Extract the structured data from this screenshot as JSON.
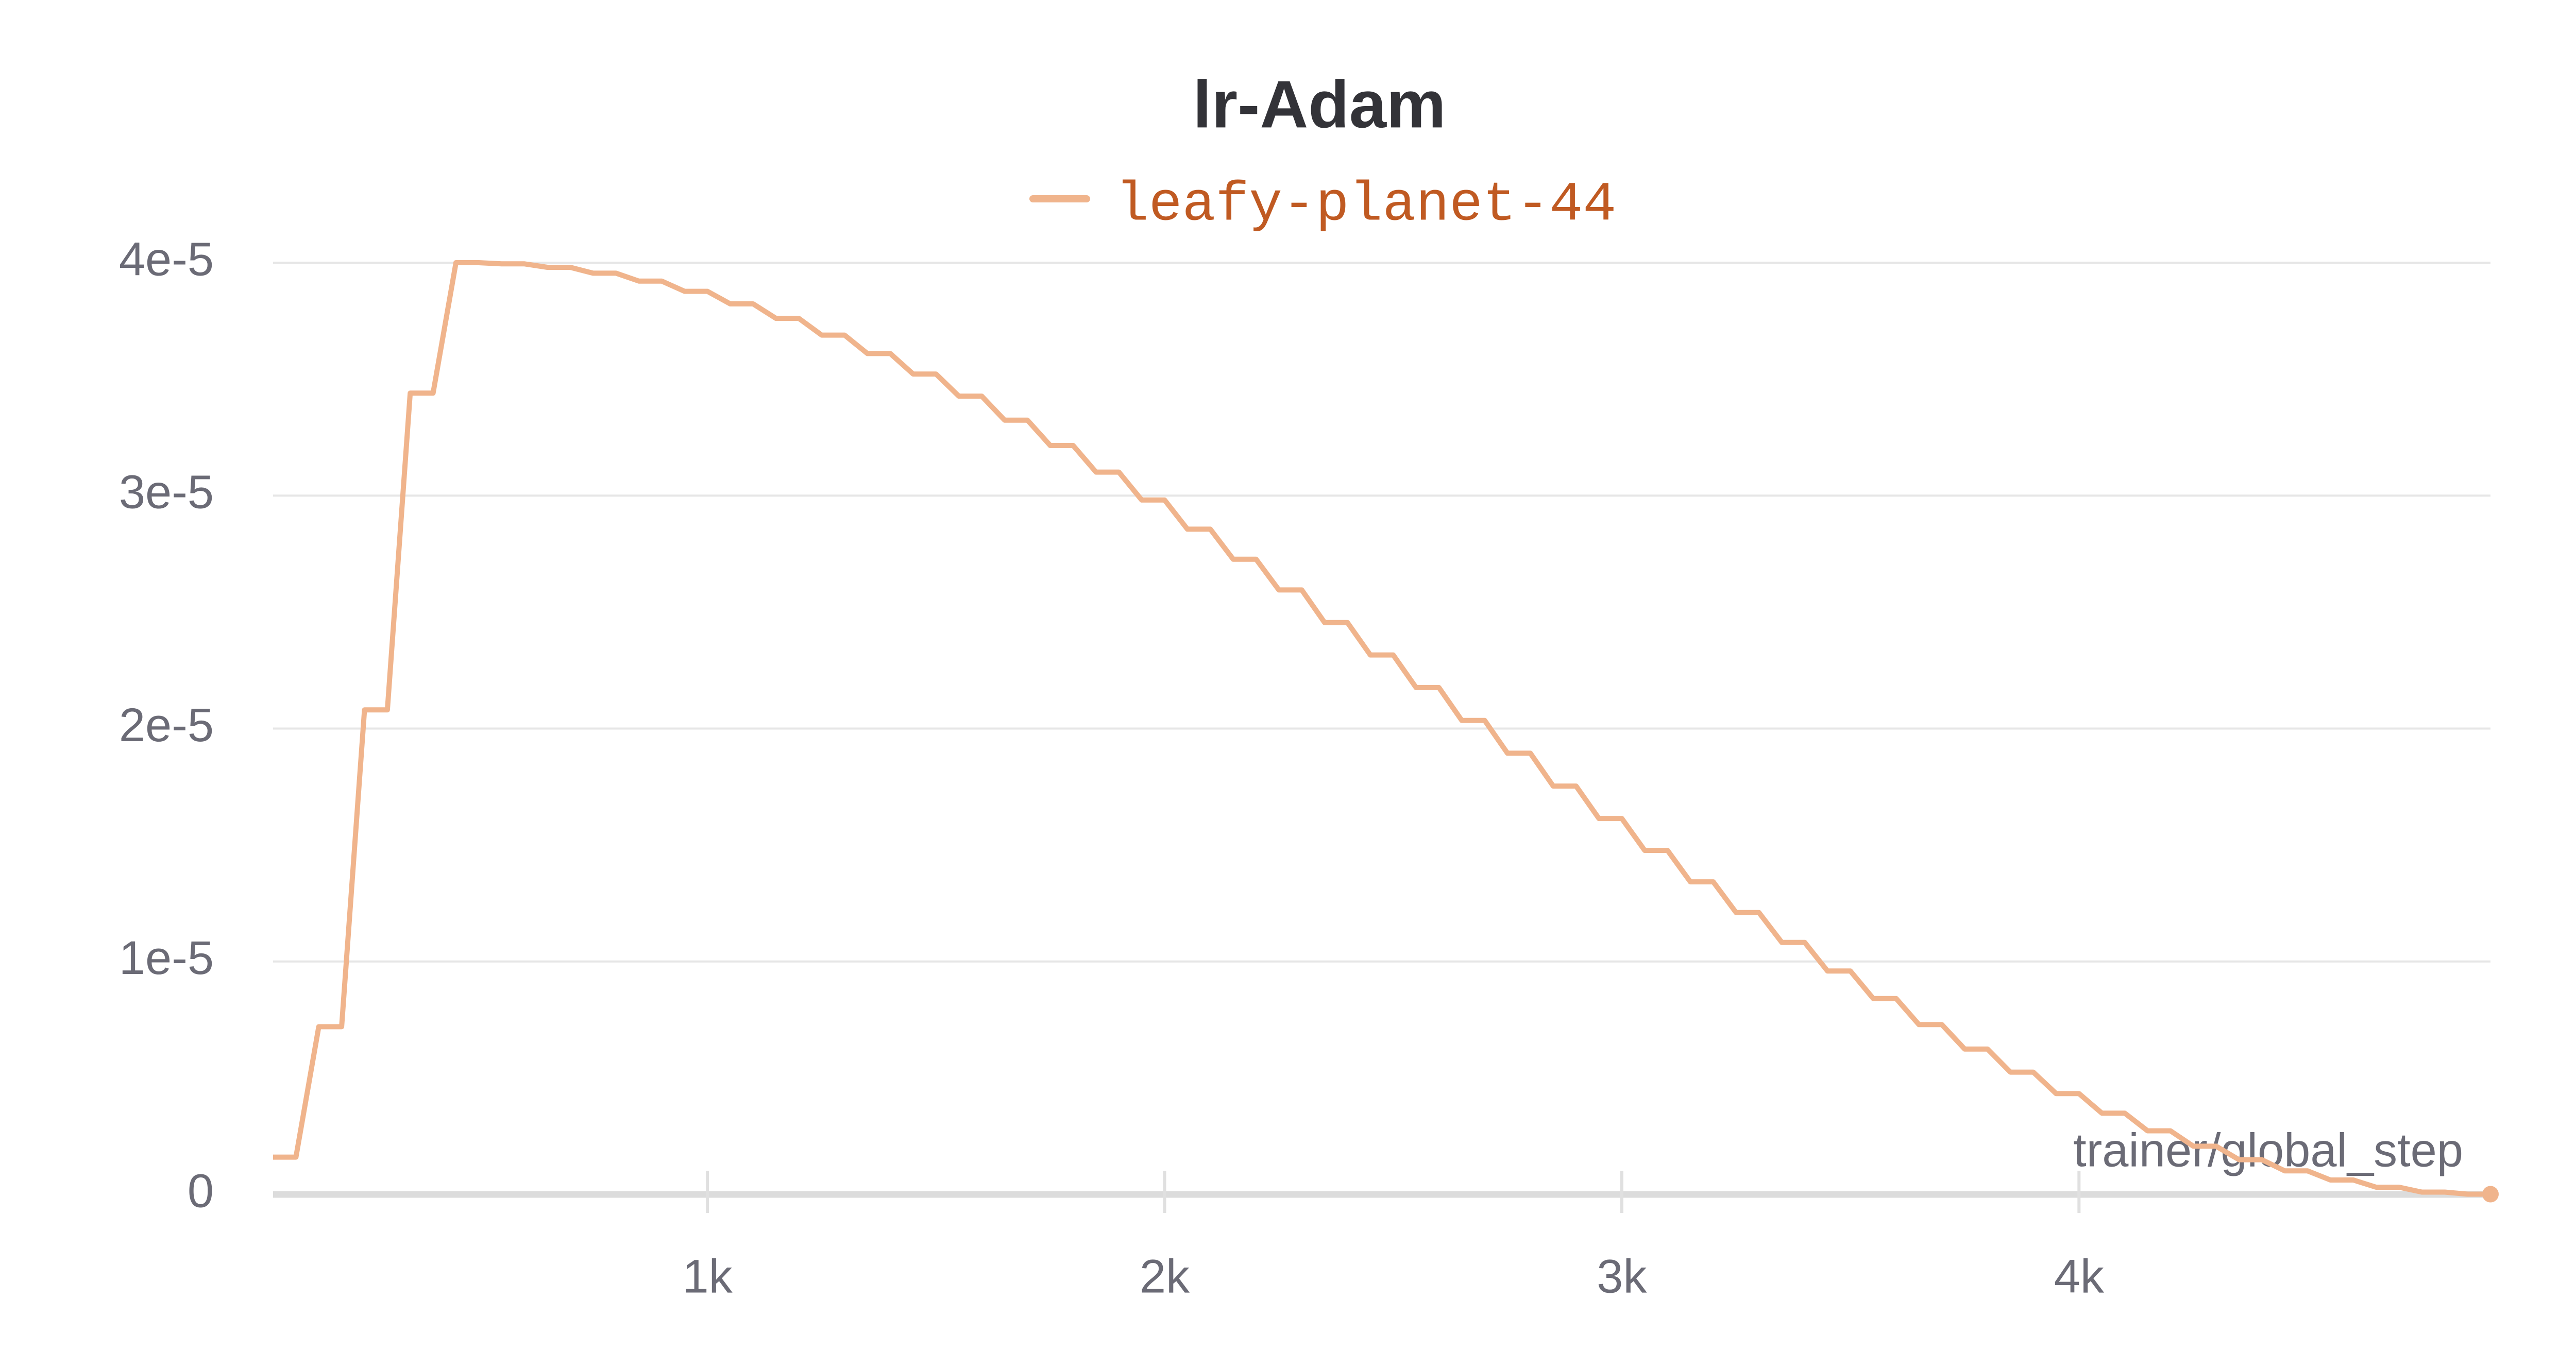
{
  "chart_data": {
    "type": "line",
    "title": "lr-Adam",
    "x_label": "trainer/global_step",
    "x": [
      50,
      100,
      150,
      200,
      250,
      300,
      350,
      400,
      450,
      500,
      550,
      600,
      650,
      700,
      750,
      800,
      850,
      900,
      950,
      1000,
      1050,
      1100,
      1150,
      1200,
      1250,
      1300,
      1350,
      1400,
      1450,
      1500,
      1550,
      1600,
      1650,
      1700,
      1750,
      1800,
      1850,
      1900,
      1950,
      2000,
      2050,
      2100,
      2150,
      2200,
      2250,
      2300,
      2350,
      2400,
      2450,
      2500,
      2550,
      2600,
      2650,
      2700,
      2750,
      2800,
      2850,
      2900,
      2950,
      3000,
      3050,
      3100,
      3150,
      3200,
      3250,
      3300,
      3350,
      3400,
      3450,
      3500,
      3550,
      3600,
      3650,
      3700,
      3750,
      3800,
      3850,
      3900,
      3950,
      4000,
      4050,
      4100,
      4150,
      4200,
      4250,
      4300,
      4350,
      4400,
      4450,
      4500,
      4550,
      4600,
      4650,
      4700,
      4750,
      4800,
      4850,
      4900
    ],
    "series": [
      {
        "name": "leafy-planet-44",
        "color": "#f0b48c",
        "label_color": "#c05a22",
        "values": [
          1.6e-06,
          1.6e-06,
          7.2e-06,
          7.2e-06,
          2.08e-05,
          2.08e-05,
          3.44e-05,
          3.44e-05,
          4e-05,
          4e-05,
          3.995e-05,
          3.995e-05,
          3.98e-05,
          3.98e-05,
          3.955e-05,
          3.955e-05,
          3.921e-05,
          3.921e-05,
          3.877e-05,
          3.877e-05,
          3.823e-05,
          3.823e-05,
          3.761e-05,
          3.761e-05,
          3.689e-05,
          3.689e-05,
          3.61e-05,
          3.61e-05,
          3.522e-05,
          3.522e-05,
          3.427e-05,
          3.427e-05,
          3.324e-05,
          3.324e-05,
          3.215e-05,
          3.215e-05,
          3.101e-05,
          3.101e-05,
          2.981e-05,
          2.981e-05,
          2.856e-05,
          2.856e-05,
          2.727e-05,
          2.727e-05,
          2.595e-05,
          2.595e-05,
          2.455e-05,
          2.455e-05,
          2.316e-05,
          2.316e-05,
          2.176e-05,
          2.176e-05,
          2.035e-05,
          2.035e-05,
          1.894e-05,
          1.894e-05,
          1.753e-05,
          1.753e-05,
          1.614e-05,
          1.614e-05,
          1.477e-05,
          1.477e-05,
          1.342e-05,
          1.342e-05,
          1.21e-05,
          1.21e-05,
          1.082e-05,
          1.082e-05,
          9.59e-06,
          9.59e-06,
          8.41e-06,
          8.41e-06,
          7.29e-06,
          7.29e-06,
          6.24e-06,
          6.24e-06,
          5.25e-06,
          5.25e-06,
          4.33e-06,
          4.33e-06,
          3.49e-06,
          3.49e-06,
          2.73e-06,
          2.73e-06,
          2.07e-06,
          2.07e-06,
          1.49e-06,
          1.49e-06,
          1.01e-06,
          1.01e-06,
          6.2e-07,
          6.2e-07,
          3.1e-07,
          3.1e-07,
          1e-07,
          1e-07,
          1e-08,
          1e-08
        ]
      }
    ],
    "xlim": [
      50,
      4900
    ],
    "xticks": [
      {
        "value": 1000,
        "label": "1k"
      },
      {
        "value": 2000,
        "label": "2k"
      },
      {
        "value": 3000,
        "label": "3k"
      },
      {
        "value": 4000,
        "label": "4k"
      }
    ],
    "ylim": [
      0,
      4e-05
    ],
    "yticks": [
      0,
      {
        "value": 1e-05,
        "label": "1e-5"
      },
      {
        "value": 2e-05,
        "label": "2e-5"
      },
      {
        "value": 3e-05,
        "label": "3e-5"
      },
      {
        "value": 4e-05,
        "label": "4e-5"
      }
    ],
    "grid": true
  }
}
